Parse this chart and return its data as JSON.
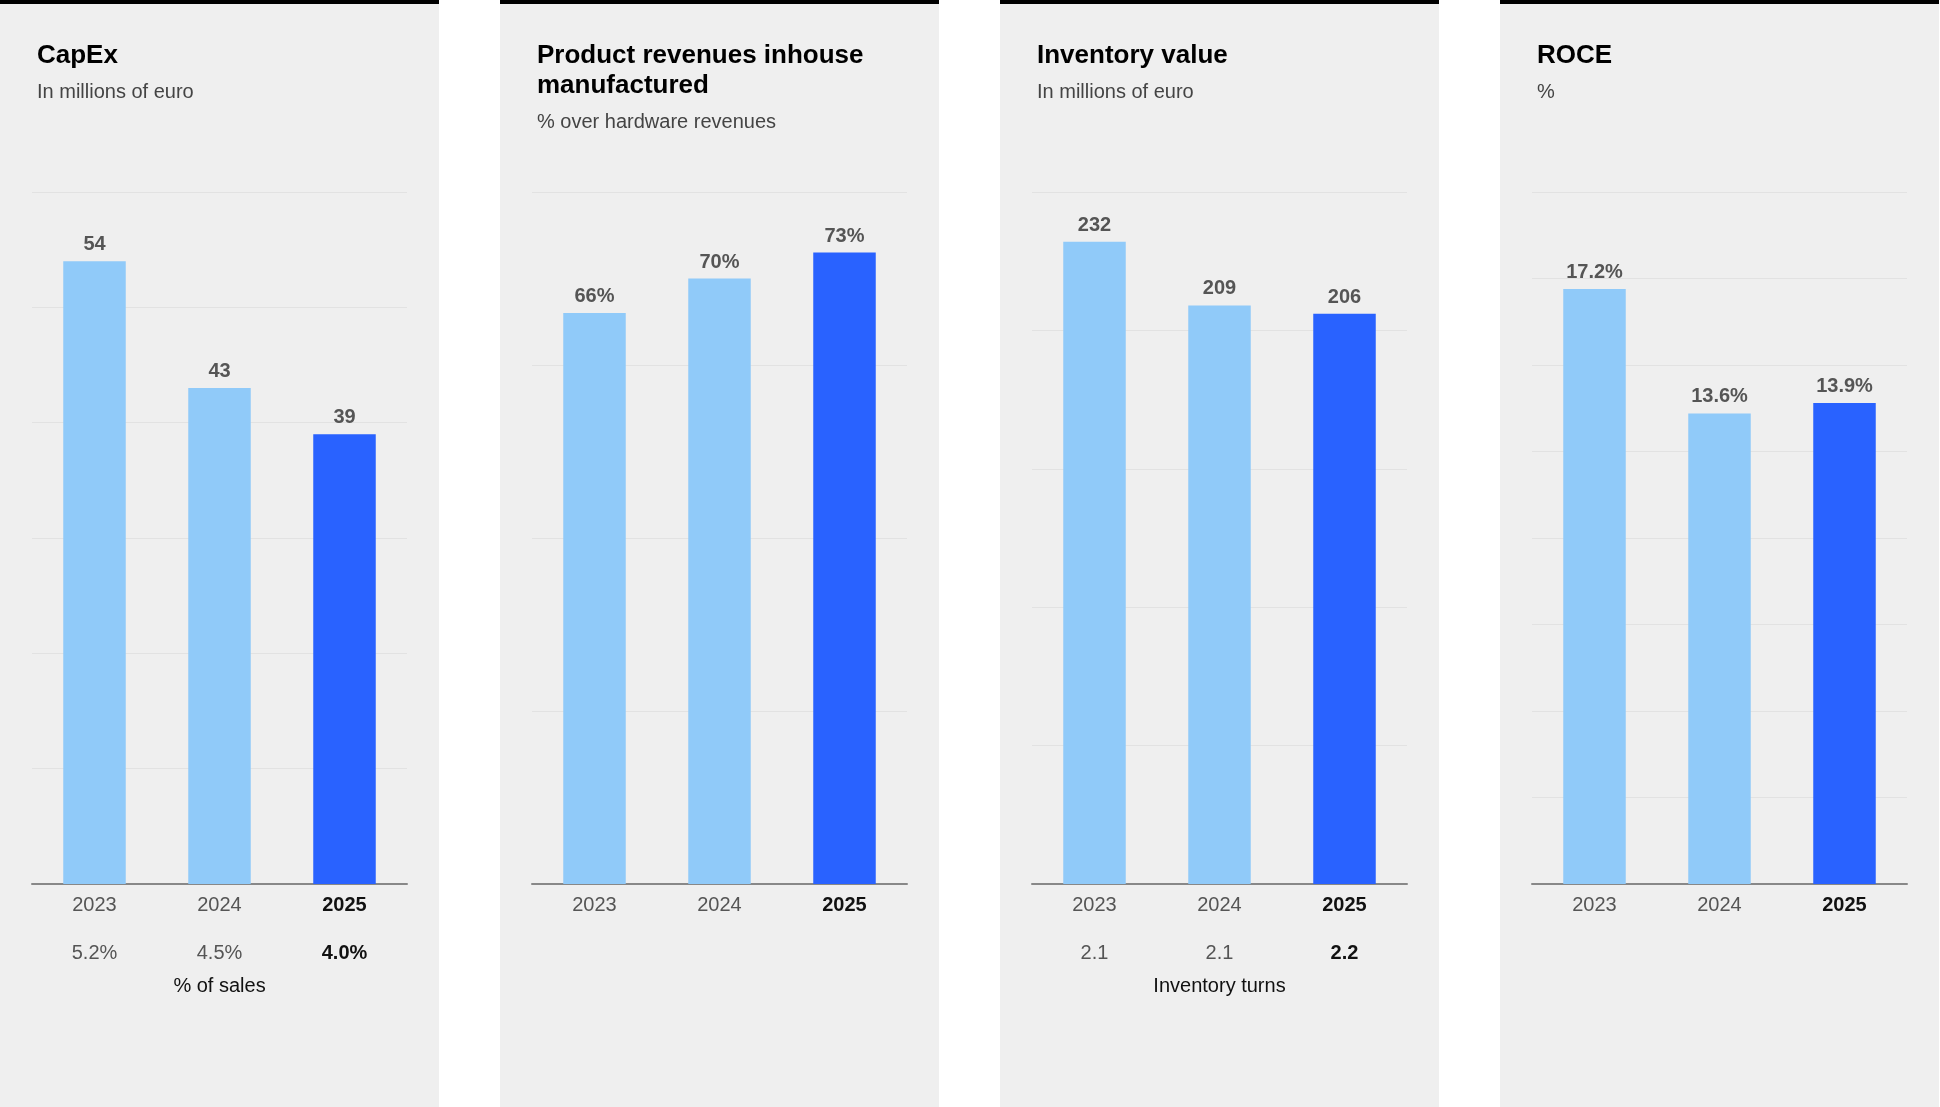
{
  "chart_data": [
    {
      "type": "bar",
      "title": "CapEx",
      "subtitle": "In millions of euro",
      "categories": [
        "2023",
        "2024",
        "2025"
      ],
      "values": [
        54,
        43,
        39
      ],
      "colors": [
        "#90caf9",
        "#90caf9",
        "#2962ff"
      ],
      "data_labels": true,
      "ylim": [
        0,
        60
      ],
      "yticks": [
        {
          "value": 0,
          "label": null
        },
        {
          "value": 10,
          "label": null
        },
        {
          "value": 20,
          "label": null
        },
        {
          "value": 30,
          "label": null
        },
        {
          "value": 40,
          "label": null
        },
        {
          "value": 50,
          "label": null
        },
        {
          "value": 60,
          "label": null
        }
      ],
      "grid": "y",
      "tick_labels": "x",
      "annotations": [
        "5.2%",
        "4.5%",
        "4.0%",
        "% of sales"
      ]
    },
    {
      "type": "bar",
      "title": "Product revenues inhouse manufactured",
      "subtitle": "% over hardware revenues",
      "categories": [
        "2023",
        "2024",
        "2025"
      ],
      "values": [
        66,
        70,
        73
      ],
      "value_labels": [
        "66%",
        "70%",
        "73%"
      ],
      "colors": [
        "#90caf9",
        "#90caf9",
        "#2962ff"
      ],
      "ylim": [
        0,
        80
      ],
      "yticks": [
        {
          "value": 0,
          "label": null
        },
        {
          "value": 20,
          "label": null
        },
        {
          "value": 40,
          "label": null
        },
        {
          "value": 60,
          "label": null
        },
        {
          "value": 80,
          "label": null
        }
      ],
      "grid": "y",
      "tick_labels": "x"
    },
    {
      "type": "bar",
      "title": "Inventory value",
      "subtitle": "In millions of euro",
      "categories": [
        "2023",
        "2024",
        "2025"
      ],
      "values": [
        232,
        209,
        206
      ],
      "colors": [
        "#90caf9",
        "#90caf9",
        "#2962ff"
      ],
      "data_labels": true,
      "ylim": [
        0,
        250
      ],
      "yticks": [
        {
          "value": 0,
          "label": null
        },
        {
          "value": 50,
          "label": null
        },
        {
          "value": 100,
          "label": null
        },
        {
          "value": 150,
          "label": null
        },
        {
          "value": 200,
          "label": null
        },
        {
          "value": 250,
          "label": null
        }
      ],
      "grid": "y",
      "tick_labels": "x",
      "annotations": [
        "2.1",
        "2.1",
        "2.2",
        "Inventory turns"
      ]
    },
    {
      "type": "bar",
      "title": "ROCE",
      "subtitle": "%",
      "categories": [
        "2023",
        "2024",
        "2025"
      ],
      "values": [
        17.2,
        13.6,
        13.9
      ],
      "value_labels": [
        "17.2%",
        "13.6%",
        "13.9%"
      ],
      "colors": [
        "#90caf9",
        "#90caf9",
        "#2962ff"
      ],
      "ylim": [
        0,
        20
      ],
      "yticks": [
        {
          "value": 0,
          "label": null
        },
        {
          "value": 2.5,
          "label": null
        },
        {
          "value": 5,
          "label": null
        },
        {
          "value": 7.5,
          "label": null
        },
        {
          "value": 10,
          "label": null
        },
        {
          "value": 12.5,
          "label": null
        },
        {
          "value": 15,
          "label": null
        },
        {
          "value": 17.5,
          "label": null
        },
        {
          "value": 20,
          "label": null
        }
      ],
      "grid": "y",
      "tick_labels": "x"
    }
  ]
}
